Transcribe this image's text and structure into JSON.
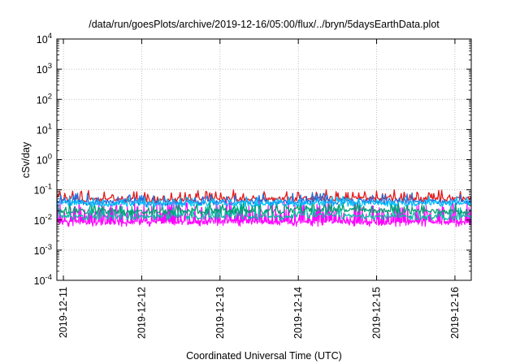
{
  "chart_data": {
    "type": "line",
    "title": "/data/run/goesPlots/archive/2019-12-16/05:00/flux/../bryn/5daysEarthData.plot",
    "xlabel": "Coordinated Universal Time (UTC)",
    "ylabel": "cSv/day",
    "yscale": "log",
    "ylim": [
      0.0001,
      10000
    ],
    "xlim": [
      "2019-12-10T22:00",
      "2019-12-16T05:00"
    ],
    "grid": true,
    "y_ticks": [
      {
        "base": "10",
        "exp": "-4",
        "value": 0.0001
      },
      {
        "base": "10",
        "exp": "-3",
        "value": 0.001
      },
      {
        "base": "10",
        "exp": "-2",
        "value": 0.01
      },
      {
        "base": "10",
        "exp": "-1",
        "value": 0.1
      },
      {
        "base": "10",
        "exp": "0",
        "value": 1
      },
      {
        "base": "10",
        "exp": "1",
        "value": 10
      },
      {
        "base": "10",
        "exp": "2",
        "value": 100
      },
      {
        "base": "10",
        "exp": "3",
        "value": 1000
      },
      {
        "base": "10",
        "exp": "4",
        "value": 10000
      }
    ],
    "x_ticks": [
      {
        "label": "2019-12-11",
        "value": "2019-12-11T00:00"
      },
      {
        "label": "2019-12-12",
        "value": "2019-12-12T00:00"
      },
      {
        "label": "2019-12-13",
        "value": "2019-12-13T00:00"
      },
      {
        "label": "2019-12-14",
        "value": "2019-12-14T00:00"
      },
      {
        "label": "2019-12-15",
        "value": "2019-12-15T00:00"
      },
      {
        "label": "2019-12-16",
        "value": "2019-12-16T00:00"
      }
    ],
    "series": [
      {
        "color": "#ff00ff",
        "base": 0.009,
        "low": 0.006,
        "high": 0.05,
        "spikes": true,
        "x": [
          "2019-12-11T00:00",
          "2019-12-11T12:00",
          "2019-12-12T00:00",
          "2019-12-12T12:00",
          "2019-12-13T00:00",
          "2019-12-13T12:00",
          "2019-12-13T19:00",
          "2019-12-13T20:00",
          "2019-12-14T12:00",
          "2019-12-15T00:00",
          "2019-12-15T12:00",
          "2019-12-16T00:00",
          "2019-12-16T05:00"
        ],
        "y": [
          0.009,
          0.008,
          0.009,
          0.008,
          0.009,
          0.009,
          0.008,
          0.009,
          0.009,
          0.008,
          0.009,
          0.008,
          0.008
        ]
      },
      {
        "color": "#00c0a0",
        "base": 0.013,
        "low": 0.011,
        "high": 0.03,
        "spikes": false,
        "x": [
          "2019-12-11T00:00",
          "2019-12-12T00:00",
          "2019-12-13T00:00",
          "2019-12-13T19:00",
          "2019-12-14T00:00",
          "2019-12-15T00:00",
          "2019-12-16T00:00",
          "2019-12-16T05:00"
        ],
        "y": [
          0.013,
          0.012,
          0.013,
          0.012,
          0.014,
          0.013,
          0.012,
          0.012
        ]
      },
      {
        "color": "#009e73",
        "base": 0.02,
        "low": 0.014,
        "high": 0.04,
        "spikes": false,
        "x": [
          "2019-12-11T00:00",
          "2019-12-12T00:00",
          "2019-12-13T00:00",
          "2019-12-13T19:00",
          "2019-12-14T00:00",
          "2019-12-15T00:00",
          "2019-12-16T00:00",
          "2019-12-16T05:00"
        ],
        "y": [
          0.02,
          0.018,
          0.02,
          0.019,
          0.022,
          0.02,
          0.019,
          0.019
        ]
      },
      {
        "color": "#e31a1c",
        "base": 0.05,
        "low": 0.035,
        "high": 0.1,
        "spikes": false,
        "x": [
          "2019-12-11T00:00",
          "2019-12-12T00:00",
          "2019-12-13T00:00",
          "2019-12-13T19:00",
          "2019-12-14T00:00",
          "2019-12-15T00:00",
          "2019-12-16T00:00",
          "2019-12-16T05:00"
        ],
        "y": [
          0.05,
          0.045,
          0.05,
          0.048,
          0.052,
          0.05,
          0.05,
          0.05
        ]
      },
      {
        "color": "#1f6fe0",
        "base": 0.04,
        "low": 0.03,
        "high": 0.08,
        "spikes": false,
        "x": [
          "2019-12-11T00:00",
          "2019-12-12T00:00",
          "2019-12-13T00:00",
          "2019-12-13T19:00",
          "2019-12-14T00:00",
          "2019-12-15T00:00",
          "2019-12-16T00:00",
          "2019-12-16T05:00"
        ],
        "y": [
          0.04,
          0.036,
          0.04,
          0.038,
          0.042,
          0.04,
          0.04,
          0.04
        ]
      },
      {
        "color": "#00bfff",
        "base": 0.035,
        "low": 0.025,
        "high": 0.06,
        "spikes": false,
        "x": [
          "2019-12-11T00:00",
          "2019-12-12T00:00",
          "2019-12-13T00:00",
          "2019-12-13T19:00",
          "2019-12-14T00:00",
          "2019-12-15T00:00",
          "2019-12-16T00:00",
          "2019-12-16T05:00"
        ],
        "y": [
          0.035,
          0.032,
          0.035,
          0.034,
          0.036,
          0.035,
          0.035,
          0.035
        ]
      }
    ]
  }
}
